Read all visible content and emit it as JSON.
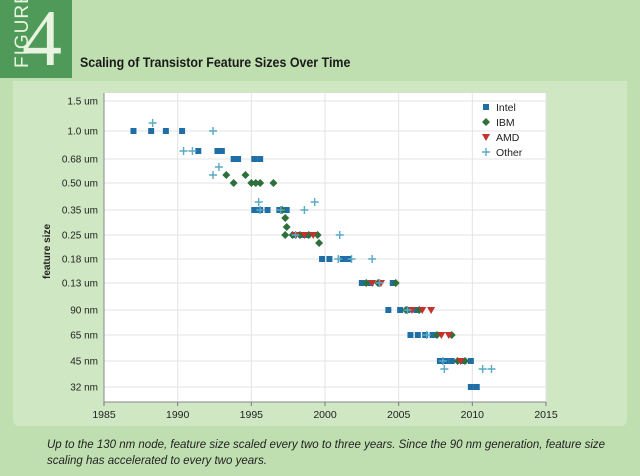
{
  "figure": {
    "word": "FIGURE",
    "number": "4"
  },
  "title": "Scaling of Transistor Feature Sizes Over Time",
  "caption": "Up to the 130 nm node, feature size scaled every two to three years. Since the 90 nm generation, feature size scaling has accelerated to every two years.",
  "colors": {
    "background": "#bfdfb0",
    "accent": "#4f9a58",
    "Intel": "#1f6fa6",
    "IBM": "#2e6f3c",
    "AMD": "#c4332b",
    "Other": "#5aa9c6"
  },
  "chart_data": {
    "type": "scatter",
    "title": "Scaling of Transistor Feature Sizes Over Time",
    "xlabel": "",
    "ylabel": "feature size",
    "xlim": [
      1985,
      2015
    ],
    "xticks": [
      "1985",
      "1990",
      "1995",
      "2000",
      "2005",
      "2010",
      "2015"
    ],
    "y_scale": "categorical nodes (log-like)",
    "y_categories": [
      "1.5 um",
      "1.0 um",
      "0.68 um",
      "0.50 um",
      "0.35 um",
      "0.25 um",
      "0.18 um",
      "0.13 um",
      "90 nm",
      "65 nm",
      "45 nm",
      "32 nm"
    ],
    "grid": true,
    "legend_position": "top-right",
    "series": [
      {
        "name": "Intel",
        "marker": "square",
        "points": [
          [
            1987.0,
            "1.0 um"
          ],
          [
            1988.2,
            "1.0 um"
          ],
          [
            1989.2,
            "1.0 um"
          ],
          [
            1990.3,
            "1.0 um"
          ],
          [
            1991.4,
            "0.68 um+"
          ],
          [
            1992.7,
            "0.68 um+"
          ],
          [
            1993.0,
            "0.68 um+"
          ],
          [
            1993.8,
            "0.68 um"
          ],
          [
            1994.1,
            "0.68 um"
          ],
          [
            1995.2,
            "0.68 um"
          ],
          [
            1995.6,
            "0.68 um"
          ],
          [
            1995.2,
            "0.35 um"
          ],
          [
            1995.6,
            "0.35 um"
          ],
          [
            1996.1,
            "0.35 um"
          ],
          [
            1996.9,
            "0.35 um"
          ],
          [
            1997.4,
            "0.35 um"
          ],
          [
            1997.9,
            "0.25 um"
          ],
          [
            1998.4,
            "0.25 um"
          ],
          [
            1998.8,
            "0.25 um"
          ],
          [
            1999.8,
            "0.18 um"
          ],
          [
            2000.3,
            "0.18 um"
          ],
          [
            2001.2,
            "0.18 um"
          ],
          [
            2001.6,
            "0.18 um"
          ],
          [
            2002.5,
            "0.13 um"
          ],
          [
            2003.1,
            "0.13 um"
          ],
          [
            2004.6,
            "0.13 um"
          ],
          [
            2004.3,
            "90 nm"
          ],
          [
            2005.1,
            "90 nm"
          ],
          [
            2005.6,
            "90 nm"
          ],
          [
            2006.2,
            "90 nm"
          ],
          [
            2005.8,
            "65 nm"
          ],
          [
            2006.3,
            "65 nm"
          ],
          [
            2006.8,
            "65 nm"
          ],
          [
            2007.3,
            "65 nm"
          ],
          [
            2007.8,
            "45 nm"
          ],
          [
            2008.2,
            "45 nm"
          ],
          [
            2008.6,
            "45 nm"
          ],
          [
            2009.4,
            "45 nm"
          ],
          [
            2009.9,
            "45 nm"
          ],
          [
            2009.9,
            "32 nm"
          ],
          [
            2010.3,
            "32 nm"
          ]
        ]
      },
      {
        "name": "IBM",
        "marker": "diamond",
        "points": [
          [
            1993.3,
            "0.50 um+"
          ],
          [
            1993.8,
            "0.50 um"
          ],
          [
            1994.6,
            "0.50 um+"
          ],
          [
            1995.0,
            "0.50 um"
          ],
          [
            1995.3,
            "0.50 um"
          ],
          [
            1995.6,
            "0.50 um"
          ],
          [
            1996.5,
            "0.50 um"
          ],
          [
            1997.1,
            "0.35 um"
          ],
          [
            1997.3,
            "0.35 um-"
          ],
          [
            1997.4,
            "0.25 um+"
          ],
          [
            1997.3,
            "0.25 um"
          ],
          [
            1997.8,
            "0.25 um"
          ],
          [
            1998.3,
            "0.25 um"
          ],
          [
            1998.9,
            "0.25 um"
          ],
          [
            1999.5,
            "0.25 um"
          ],
          [
            1999.6,
            "0.25 um-"
          ],
          [
            2002.8,
            "0.13 um"
          ],
          [
            2003.6,
            "0.13 um"
          ],
          [
            2004.8,
            "0.13 um"
          ],
          [
            2005.5,
            "90 nm"
          ],
          [
            2006.4,
            "90 nm"
          ],
          [
            2007.6,
            "65 nm"
          ],
          [
            2008.6,
            "65 nm"
          ],
          [
            2009.0,
            "45 nm"
          ],
          [
            2009.5,
            "45 nm"
          ]
        ]
      },
      {
        "name": "AMD",
        "marker": "triangle-down",
        "points": [
          [
            1998.0,
            "0.25 um"
          ],
          [
            1998.6,
            "0.25 um"
          ],
          [
            1999.2,
            "0.25 um"
          ],
          [
            2003.2,
            "0.13 um"
          ],
          [
            2003.8,
            "0.13 um"
          ],
          [
            2005.9,
            "90 nm"
          ],
          [
            2006.6,
            "90 nm"
          ],
          [
            2007.2,
            "90 nm"
          ],
          [
            2007.9,
            "65 nm"
          ],
          [
            2008.4,
            "65 nm"
          ],
          [
            2009.2,
            "45 nm"
          ]
        ]
      },
      {
        "name": "Other",
        "marker": "plus",
        "points": [
          [
            1988.3,
            "1.0 um+"
          ],
          [
            1992.4,
            "1.0 um"
          ],
          [
            1990.4,
            "0.68 um+"
          ],
          [
            1991.0,
            "0.68 um+"
          ],
          [
            1992.8,
            "0.68 um-"
          ],
          [
            1992.4,
            "0.50 um+"
          ],
          [
            1995.5,
            "0.35 um+"
          ],
          [
            1995.6,
            "0.35 um"
          ],
          [
            1997.0,
            "0.35 um"
          ],
          [
            1998.6,
            "0.35 um"
          ],
          [
            1999.3,
            "0.35 um+"
          ],
          [
            1998.0,
            "0.25 um"
          ],
          [
            2001.0,
            "0.25 um"
          ],
          [
            2000.9,
            "0.18 um"
          ],
          [
            2001.8,
            "0.18 um"
          ],
          [
            2003.2,
            "0.18 um"
          ],
          [
            2003.7,
            "0.13 um"
          ],
          [
            2005.6,
            "90 nm"
          ],
          [
            2006.9,
            "65 nm"
          ],
          [
            2008.0,
            "45 nm"
          ],
          [
            2008.1,
            "45 nm-"
          ],
          [
            2010.7,
            "45 nm-"
          ],
          [
            2011.3,
            "45 nm-"
          ]
        ]
      }
    ]
  }
}
